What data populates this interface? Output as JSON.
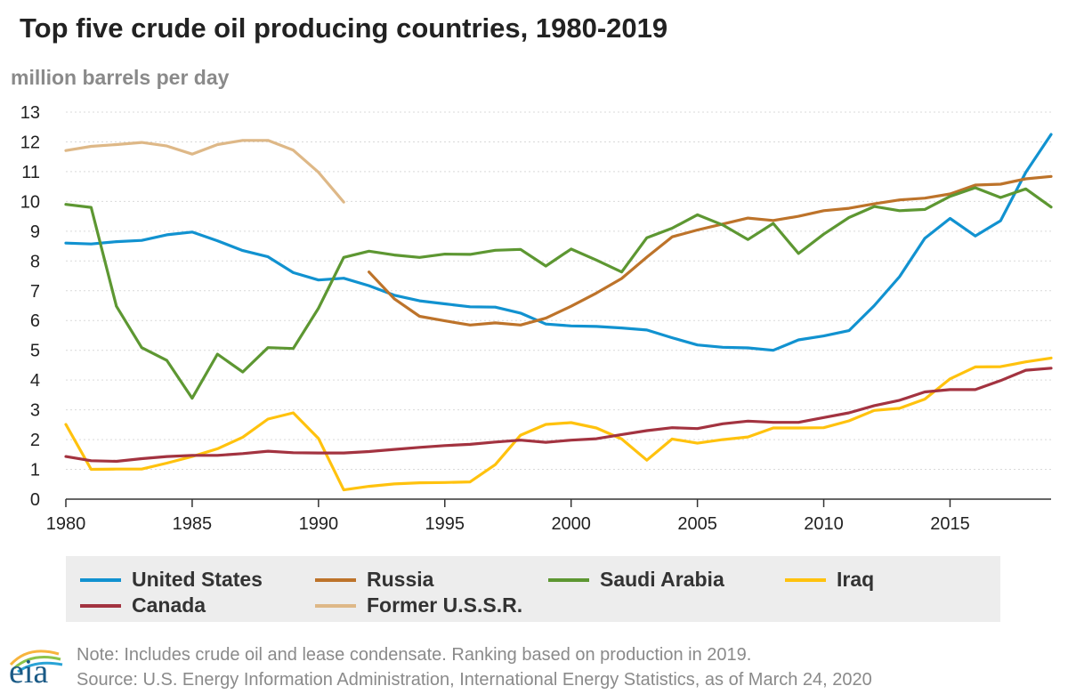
{
  "title": "Top five crude oil producing countries, 1980-2019",
  "unit_label": "million barrels per day",
  "note": "Note: Includes crude oil and lease condensate. Ranking based on production in 2019.",
  "source": "Source: U.S. Energy Information Administration, International Energy Statistics, as of March 24, 2020",
  "logo_text": "eia",
  "chart_data": {
    "type": "line",
    "title": "Top five crude oil producing countries, 1980-2019",
    "ylabel": "million barrels per day",
    "xlim": [
      1980,
      2019
    ],
    "ylim": [
      0,
      13
    ],
    "x_ticks": [
      1980,
      1985,
      1990,
      1995,
      2000,
      2005,
      2010,
      2015
    ],
    "y_ticks": [
      0,
      1,
      2,
      3,
      4,
      5,
      6,
      7,
      8,
      9,
      10,
      11,
      12,
      13
    ],
    "grid": "horizontal",
    "legend_position": "bottom",
    "series": [
      {
        "name": "United States",
        "color": "#1192d0",
        "x_start": 1980,
        "values": [
          8.6,
          8.57,
          8.65,
          8.69,
          8.88,
          8.97,
          8.68,
          8.35,
          8.14,
          7.61,
          7.36,
          7.42,
          7.17,
          6.85,
          6.66,
          6.56,
          6.46,
          6.45,
          6.25,
          5.88,
          5.82,
          5.8,
          5.75,
          5.68,
          5.42,
          5.18,
          5.1,
          5.08,
          5.0,
          5.35,
          5.48,
          5.66,
          6.5,
          7.47,
          8.76,
          9.43,
          8.84,
          9.35,
          10.98,
          12.25
        ]
      },
      {
        "name": "Russia",
        "color": "#bd732a",
        "x_start": 1992,
        "values": [
          7.63,
          6.73,
          6.14,
          5.99,
          5.85,
          5.92,
          5.85,
          6.08,
          6.48,
          6.92,
          7.41,
          8.13,
          8.81,
          9.04,
          9.24,
          9.44,
          9.36,
          9.5,
          9.69,
          9.77,
          9.92,
          10.05,
          10.11,
          10.25,
          10.55,
          10.58,
          10.76,
          10.84
        ]
      },
      {
        "name": "Saudi Arabia",
        "color": "#5d9732",
        "x_start": 1980,
        "values": [
          9.9,
          9.8,
          6.48,
          5.09,
          4.66,
          3.39,
          4.87,
          4.27,
          5.09,
          5.06,
          6.41,
          8.12,
          8.33,
          8.2,
          8.12,
          8.23,
          8.22,
          8.36,
          8.39,
          7.83,
          8.4,
          8.03,
          7.63,
          8.78,
          9.1,
          9.55,
          9.21,
          8.72,
          9.26,
          8.25,
          8.9,
          9.46,
          9.83,
          9.69,
          9.73,
          10.17,
          10.46,
          10.13,
          10.42,
          9.81
        ]
      },
      {
        "name": "Iraq",
        "color": "#ffc20e",
        "x_start": 1980,
        "values": [
          2.51,
          1.0,
          1.01,
          1.01,
          1.21,
          1.43,
          1.69,
          2.08,
          2.69,
          2.9,
          2.04,
          0.31,
          0.43,
          0.51,
          0.55,
          0.56,
          0.58,
          1.16,
          2.15,
          2.51,
          2.57,
          2.39,
          2.02,
          1.31,
          2.02,
          1.88,
          2.0,
          2.09,
          2.39,
          2.39,
          2.4,
          2.63,
          2.98,
          3.05,
          3.36,
          4.04,
          4.44,
          4.45,
          4.61,
          4.74
        ]
      },
      {
        "name": "Canada",
        "color": "#a33340",
        "x_start": 1980,
        "values": [
          1.43,
          1.29,
          1.27,
          1.36,
          1.43,
          1.47,
          1.47,
          1.53,
          1.61,
          1.56,
          1.55,
          1.55,
          1.6,
          1.67,
          1.74,
          1.8,
          1.84,
          1.92,
          1.98,
          1.91,
          1.98,
          2.03,
          2.17,
          2.3,
          2.4,
          2.37,
          2.53,
          2.62,
          2.58,
          2.58,
          2.74,
          2.9,
          3.14,
          3.32,
          3.6,
          3.68,
          3.68,
          3.98,
          4.33,
          4.4
        ]
      },
      {
        "name": "Former U.S.S.R.",
        "color": "#deb887",
        "x_start": 1980,
        "values": [
          11.71,
          11.85,
          11.91,
          11.98,
          11.86,
          11.59,
          11.91,
          12.05,
          12.05,
          11.72,
          10.98,
          9.98
        ]
      }
    ]
  }
}
